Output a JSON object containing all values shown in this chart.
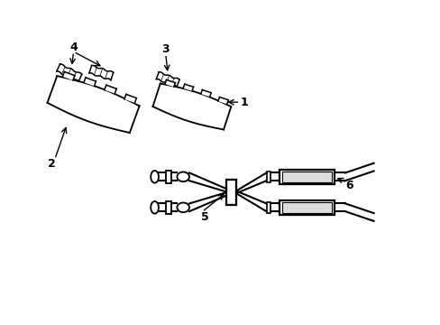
{
  "bg_color": "#ffffff",
  "line_color": "#000000",
  "figsize": [
    4.89,
    3.6
  ],
  "dpi": 100,
  "xlim": [
    0,
    10
  ],
  "ylim": [
    0,
    7.35
  ]
}
